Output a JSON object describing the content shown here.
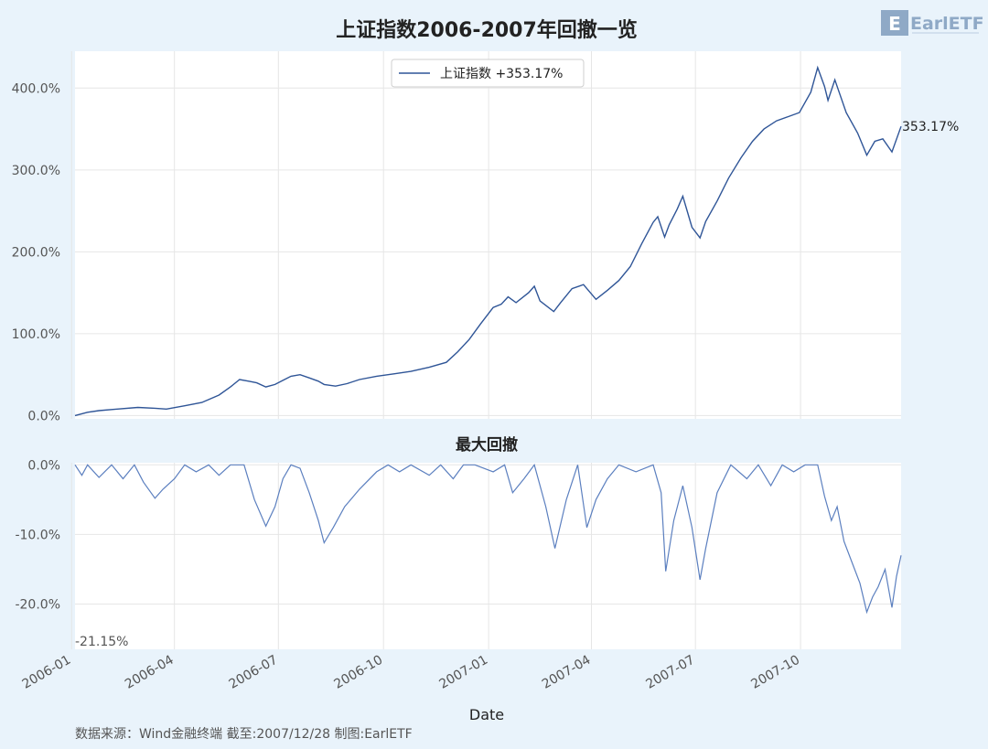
{
  "title": "上证指数2006-2007年回撤一览",
  "logo_text": "EarlETF",
  "subtitle_drawdown": "最大回撤",
  "xlabel": "Date",
  "footer": "数据来源：Wind金融终端 截至:2007/12/28 制图:EarlETF",
  "colors": {
    "background": "#e9f3fb",
    "plot_bg": "#ffffff",
    "line": "#2f5597",
    "drawdown_line": "#5b7fbf",
    "grid": "#e6e6e6"
  },
  "chart_data": [
    {
      "type": "line",
      "title": "上证指数2006-2007年回撤一览",
      "legend": {
        "label": "上证指数 +353.17%",
        "placement": "top-center"
      },
      "end_label": "353.17%",
      "ylim": [
        -4,
        445
      ],
      "y_ticks": [
        0,
        100,
        200,
        300,
        400
      ],
      "y_tick_labels": [
        "0.0%",
        "100.0%",
        "200.0%",
        "300.0%",
        "400.0%"
      ],
      "x_range": [
        "2006-01-04",
        "2007-12-28"
      ],
      "x_ticks": [
        "2006-01",
        "2006-04",
        "2006-07",
        "2006-10",
        "2007-01",
        "2007-04",
        "2007-07",
        "2007-10"
      ],
      "grid": true,
      "series": [
        {
          "name": "上证指数",
          "points": [
            [
              "2006-01-04",
              0
            ],
            [
              "2006-01-15",
              4
            ],
            [
              "2006-01-25",
              6
            ],
            [
              "2006-02-10",
              8
            ],
            [
              "2006-02-28",
              10
            ],
            [
              "2006-03-15",
              9
            ],
            [
              "2006-03-25",
              8
            ],
            [
              "2006-04-10",
              12
            ],
            [
              "2006-04-25",
              16
            ],
            [
              "2006-05-10",
              25
            ],
            [
              "2006-05-20",
              35
            ],
            [
              "2006-05-28",
              44
            ],
            [
              "2006-06-05",
              42
            ],
            [
              "2006-06-12",
              40
            ],
            [
              "2006-06-20",
              35
            ],
            [
              "2006-06-28",
              38
            ],
            [
              "2006-07-05",
              43
            ],
            [
              "2006-07-12",
              48
            ],
            [
              "2006-07-20",
              50
            ],
            [
              "2006-07-28",
              46
            ],
            [
              "2006-08-05",
              42
            ],
            [
              "2006-08-10",
              38
            ],
            [
              "2006-08-20",
              36
            ],
            [
              "2006-08-30",
              39
            ],
            [
              "2006-09-10",
              44
            ],
            [
              "2006-09-25",
              48
            ],
            [
              "2006-10-10",
              51
            ],
            [
              "2006-10-25",
              54
            ],
            [
              "2006-11-10",
              59
            ],
            [
              "2006-11-25",
              65
            ],
            [
              "2006-12-05",
              78
            ],
            [
              "2006-12-15",
              93
            ],
            [
              "2006-12-25",
              112
            ],
            [
              "2007-01-05",
              132
            ],
            [
              "2007-01-12",
              136
            ],
            [
              "2007-01-18",
              145
            ],
            [
              "2007-01-25",
              138
            ],
            [
              "2007-02-05",
              150
            ],
            [
              "2007-02-10",
              158
            ],
            [
              "2007-02-15",
              140
            ],
            [
              "2007-02-27",
              127
            ],
            [
              "2007-03-05",
              138
            ],
            [
              "2007-03-15",
              155
            ],
            [
              "2007-03-25",
              160
            ],
            [
              "2007-04-05",
              142
            ],
            [
              "2007-04-15",
              153
            ],
            [
              "2007-04-25",
              165
            ],
            [
              "2007-05-05",
              182
            ],
            [
              "2007-05-15",
              210
            ],
            [
              "2007-05-25",
              236
            ],
            [
              "2007-05-29",
              243
            ],
            [
              "2007-06-04",
              218
            ],
            [
              "2007-06-08",
              233
            ],
            [
              "2007-06-15",
              252
            ],
            [
              "2007-06-20",
              268
            ],
            [
              "2007-06-28",
              230
            ],
            [
              "2007-07-05",
              217
            ],
            [
              "2007-07-10",
              237
            ],
            [
              "2007-07-20",
              262
            ],
            [
              "2007-07-30",
              290
            ],
            [
              "2007-08-10",
              315
            ],
            [
              "2007-08-20",
              335
            ],
            [
              "2007-08-30",
              350
            ],
            [
              "2007-09-10",
              360
            ],
            [
              "2007-09-20",
              365
            ],
            [
              "2007-09-30",
              370
            ],
            [
              "2007-10-10",
              395
            ],
            [
              "2007-10-16",
              425
            ],
            [
              "2007-10-22",
              402
            ],
            [
              "2007-10-25",
              385
            ],
            [
              "2007-10-31",
              410
            ],
            [
              "2007-11-05",
              390
            ],
            [
              "2007-11-10",
              370
            ],
            [
              "2007-11-20",
              345
            ],
            [
              "2007-11-28",
              318
            ],
            [
              "2007-12-05",
              335
            ],
            [
              "2007-12-12",
              338
            ],
            [
              "2007-12-20",
              322
            ],
            [
              "2007-12-28",
              353.17
            ]
          ]
        }
      ]
    },
    {
      "type": "line",
      "title": "最大回撤",
      "min_label": "-21.15%",
      "ylim": [
        -26.5,
        0.3
      ],
      "y_ticks": [
        0,
        -10,
        -20
      ],
      "y_tick_labels": [
        "0.0%",
        "-10.0%",
        "-20.0%"
      ],
      "x_range": [
        "2006-01-04",
        "2007-12-28"
      ],
      "grid": true,
      "series": [
        {
          "name": "最大回撤",
          "points": [
            [
              "2006-01-04",
              0
            ],
            [
              "2006-01-10",
              -1.5
            ],
            [
              "2006-01-15",
              0
            ],
            [
              "2006-01-25",
              -1.8
            ],
            [
              "2006-02-05",
              0
            ],
            [
              "2006-02-15",
              -2
            ],
            [
              "2006-02-25",
              0
            ],
            [
              "2006-03-05",
              -2.5
            ],
            [
              "2006-03-15",
              -4.8
            ],
            [
              "2006-03-22",
              -3.5
            ],
            [
              "2006-04-01",
              -2
            ],
            [
              "2006-04-10",
              0
            ],
            [
              "2006-04-20",
              -1
            ],
            [
              "2006-05-01",
              0
            ],
            [
              "2006-05-10",
              -1.5
            ],
            [
              "2006-05-20",
              0
            ],
            [
              "2006-06-01",
              0
            ],
            [
              "2006-06-10",
              -5
            ],
            [
              "2006-06-20",
              -8.8
            ],
            [
              "2006-06-28",
              -6
            ],
            [
              "2006-07-05",
              -2
            ],
            [
              "2006-07-12",
              0
            ],
            [
              "2006-07-20",
              -0.5
            ],
            [
              "2006-07-28",
              -4
            ],
            [
              "2006-08-05",
              -8
            ],
            [
              "2006-08-10",
              -11.2
            ],
            [
              "2006-08-18",
              -9
            ],
            [
              "2006-08-28",
              -6
            ],
            [
              "2006-09-10",
              -3.5
            ],
            [
              "2006-09-25",
              -1
            ],
            [
              "2006-10-05",
              0
            ],
            [
              "2006-10-15",
              -1
            ],
            [
              "2006-10-25",
              0
            ],
            [
              "2006-11-10",
              -1.5
            ],
            [
              "2006-11-20",
              0
            ],
            [
              "2006-12-01",
              -2
            ],
            [
              "2006-12-10",
              0
            ],
            [
              "2006-12-20",
              0
            ],
            [
              "2007-01-05",
              -1
            ],
            [
              "2007-01-15",
              0
            ],
            [
              "2007-01-22",
              -4
            ],
            [
              "2007-02-01",
              -2
            ],
            [
              "2007-02-10",
              0
            ],
            [
              "2007-02-20",
              -6
            ],
            [
              "2007-02-28",
              -12
            ],
            [
              "2007-03-10",
              -5
            ],
            [
              "2007-03-20",
              0
            ],
            [
              "2007-03-28",
              -9
            ],
            [
              "2007-04-05",
              -5
            ],
            [
              "2007-04-15",
              -2
            ],
            [
              "2007-04-25",
              0
            ],
            [
              "2007-05-10",
              -1
            ],
            [
              "2007-05-25",
              0
            ],
            [
              "2007-06-01",
              -4
            ],
            [
              "2007-06-05",
              -15.3
            ],
            [
              "2007-06-12",
              -8
            ],
            [
              "2007-06-20",
              -3
            ],
            [
              "2007-06-28",
              -9
            ],
            [
              "2007-07-05",
              -16.5
            ],
            [
              "2007-07-10",
              -12
            ],
            [
              "2007-07-20",
              -4
            ],
            [
              "2007-08-01",
              0
            ],
            [
              "2007-08-15",
              -2
            ],
            [
              "2007-08-25",
              0
            ],
            [
              "2007-09-05",
              -3
            ],
            [
              "2007-09-15",
              0
            ],
            [
              "2007-09-25",
              -1
            ],
            [
              "2007-10-05",
              0
            ],
            [
              "2007-10-16",
              0
            ],
            [
              "2007-10-22",
              -4.5
            ],
            [
              "2007-10-28",
              -8
            ],
            [
              "2007-11-02",
              -6
            ],
            [
              "2007-11-08",
              -11
            ],
            [
              "2007-11-15",
              -14
            ],
            [
              "2007-11-22",
              -17
            ],
            [
              "2007-11-28",
              -21.15
            ],
            [
              "2007-12-03",
              -19
            ],
            [
              "2007-12-08",
              -17.5
            ],
            [
              "2007-12-14",
              -15
            ],
            [
              "2007-12-20",
              -20.5
            ],
            [
              "2007-12-24",
              -16
            ],
            [
              "2007-12-28",
              -13
            ]
          ]
        }
      ]
    }
  ]
}
